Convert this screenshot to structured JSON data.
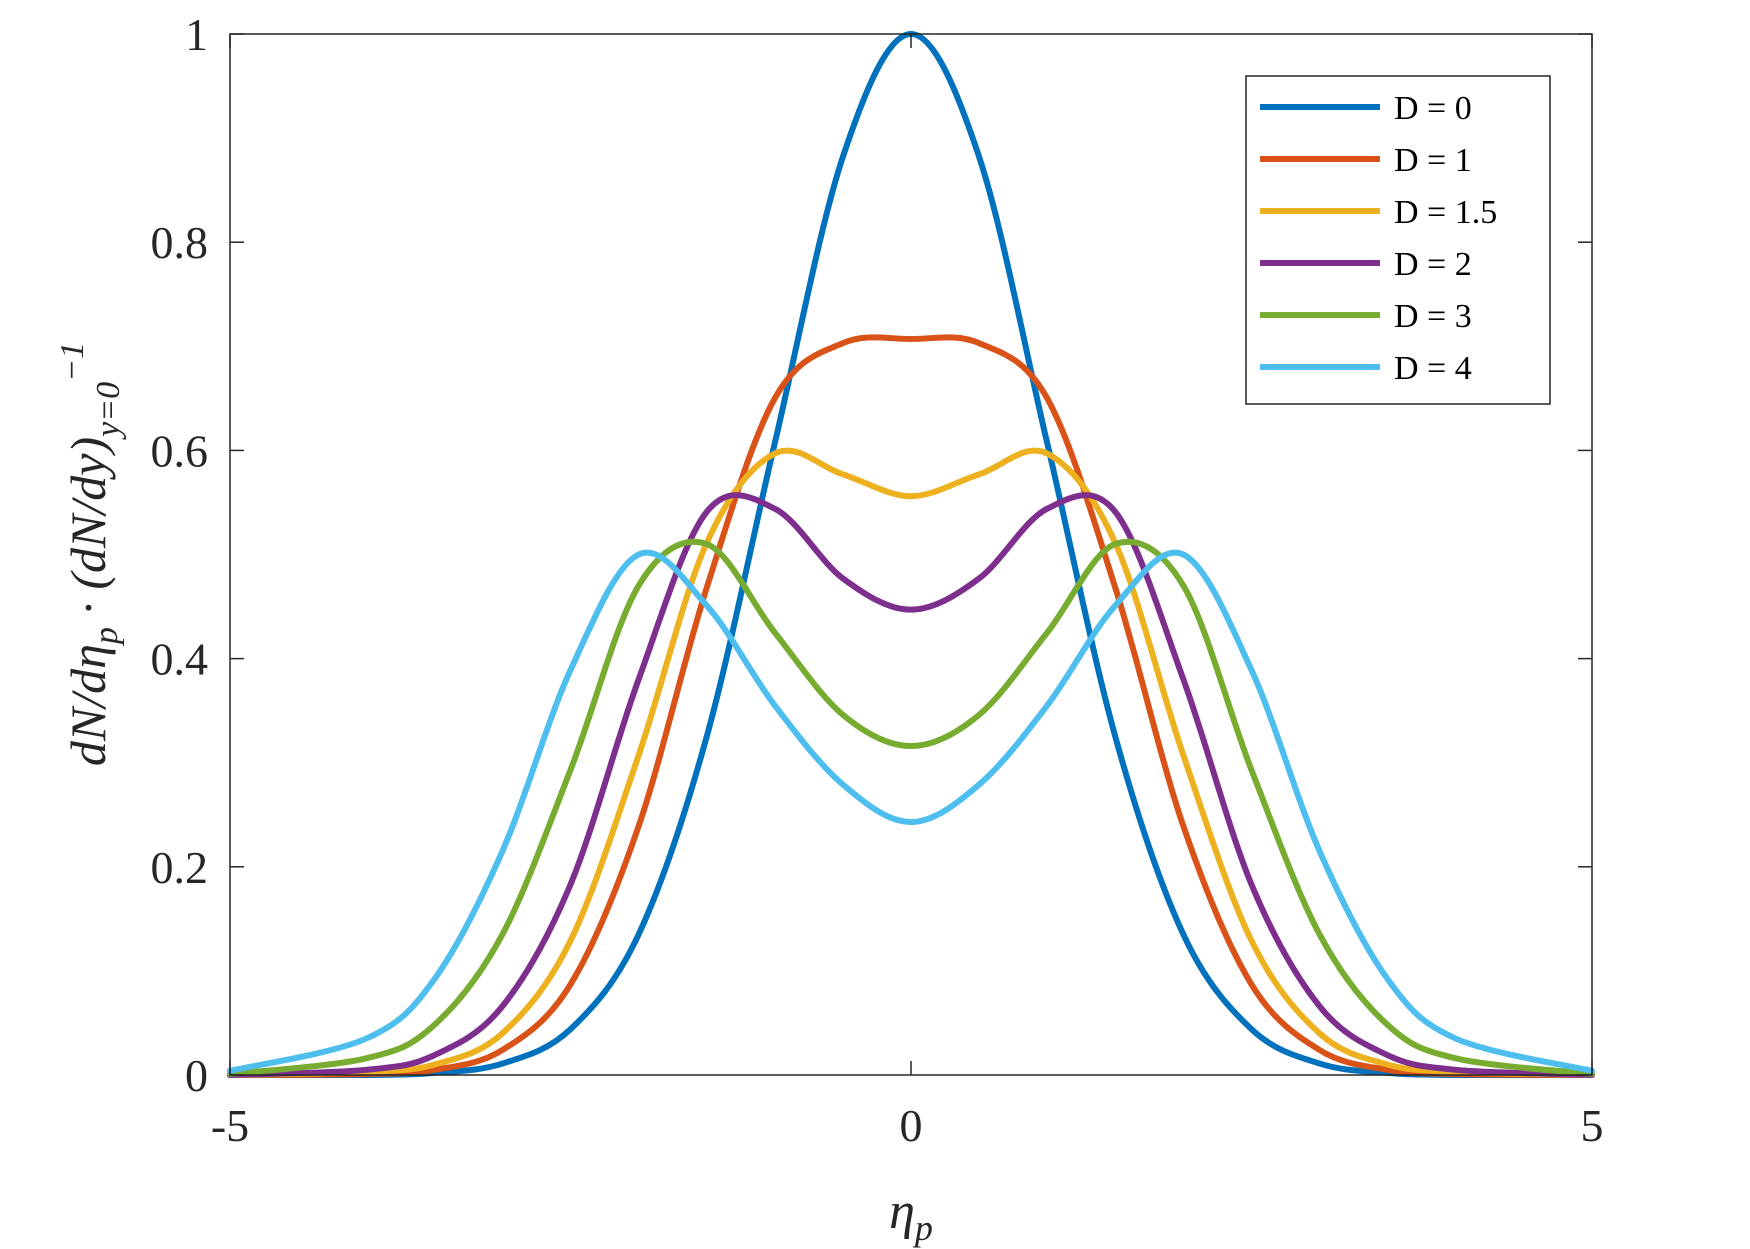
{
  "chart_data": {
    "type": "line",
    "title": "",
    "xlabel": {
      "base": "η",
      "sub": "p"
    },
    "ylabel": {
      "text": "dN/dη",
      "sub": "p",
      "middle": " · (dN/dy)",
      "sub2": "y=0",
      "sup": "−1"
    },
    "xlim": [
      -5,
      5
    ],
    "ylim": [
      0,
      1
    ],
    "xticks": [
      -5,
      0,
      5
    ],
    "xtick_labels": [
      "-5",
      "0",
      "5"
    ],
    "yticks": [
      0,
      0.2,
      0.4,
      0.6,
      0.8,
      1
    ],
    "ytick_labels": [
      "0",
      "0.2",
      "0.4",
      "0.6",
      "0.8",
      "1"
    ],
    "grid": false,
    "legend_position": "top-right",
    "series": [
      {
        "name": "D = 0",
        "D": 0,
        "color": "#0072BD",
        "x": [
          -5,
          -4,
          -3.5,
          -3,
          -2.5,
          -2,
          -1.5,
          -1,
          -0.5,
          0,
          0.5,
          1,
          1.5,
          2,
          2.5,
          3,
          3.5,
          4,
          5
        ],
        "y": [
          0.0,
          0.0,
          0.002,
          0.011,
          0.044,
          0.135,
          0.325,
          0.607,
          0.882,
          1.0,
          0.882,
          0.607,
          0.325,
          0.135,
          0.044,
          0.011,
          0.002,
          0.0,
          0.0
        ]
      },
      {
        "name": "D = 1",
        "D": 1,
        "color": "#D95319",
        "x": [
          -5,
          -4,
          -3.5,
          -3,
          -2.5,
          -2,
          -1.5,
          -1,
          -0.5,
          0,
          0.5,
          1,
          1.5,
          2,
          2.5,
          3,
          3.5,
          4,
          5
        ],
        "y": [
          0.0,
          0.001,
          0.005,
          0.024,
          0.087,
          0.239,
          0.468,
          0.65,
          0.703,
          0.707,
          0.703,
          0.65,
          0.468,
          0.239,
          0.087,
          0.024,
          0.005,
          0.001,
          0.0
        ]
      },
      {
        "name": "D = 1.5",
        "D": 1.5,
        "color": "#EDB120",
        "x": [
          -5,
          -4,
          -3.5,
          -3,
          -2.5,
          -2,
          -1.5,
          -1,
          -0.5,
          0,
          0.5,
          1,
          1.5,
          2,
          2.5,
          3,
          3.5,
          4,
          5
        ],
        "y": [
          0.0,
          0.003,
          0.01,
          0.04,
          0.129,
          0.307,
          0.511,
          0.597,
          0.577,
          0.556,
          0.577,
          0.597,
          0.511,
          0.307,
          0.129,
          0.04,
          0.01,
          0.003,
          0.0
        ]
      },
      {
        "name": "D = 2",
        "D": 2,
        "color": "#7E2F8E",
        "x": [
          -5,
          -4,
          -3.5,
          -3,
          -2.5,
          -2,
          -1.5,
          -1,
          -0.5,
          0,
          0.5,
          1,
          1.5,
          2,
          2.5,
          3,
          3.5,
          4,
          5
        ],
        "y": [
          0.0,
          0.005,
          0.019,
          0.066,
          0.183,
          0.38,
          0.541,
          0.544,
          0.477,
          0.447,
          0.477,
          0.544,
          0.541,
          0.38,
          0.183,
          0.066,
          0.019,
          0.005,
          0.0
        ]
      },
      {
        "name": "D = 3",
        "D": 3,
        "color": "#77AC30",
        "x": [
          -5,
          -4,
          -3.5,
          -3,
          -2.5,
          -2,
          -1.5,
          -1,
          -0.5,
          0,
          0.5,
          1,
          1.5,
          2,
          2.5,
          3,
          3.5,
          4,
          5
        ],
        "y": [
          0.001,
          0.016,
          0.048,
          0.135,
          0.293,
          0.47,
          0.51,
          0.425,
          0.346,
          0.316,
          0.346,
          0.425,
          0.51,
          0.47,
          0.293,
          0.135,
          0.048,
          0.016,
          0.001
        ]
      },
      {
        "name": "D = 4",
        "D": 4,
        "color": "#4DBEEE",
        "x": [
          -5,
          -4,
          -3.5,
          -3,
          -2.5,
          -2,
          -1.5,
          -1,
          -0.5,
          0,
          0.5,
          1,
          1.5,
          2,
          2.5,
          3,
          3.5,
          4,
          5
        ],
        "y": [
          0.004,
          0.035,
          0.092,
          0.215,
          0.389,
          0.5,
          0.451,
          0.355,
          0.279,
          0.243,
          0.279,
          0.355,
          0.451,
          0.5,
          0.389,
          0.215,
          0.092,
          0.035,
          0.004
        ]
      }
    ]
  }
}
